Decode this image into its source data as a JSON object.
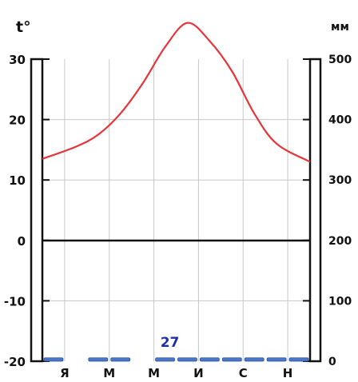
{
  "chart_data": {
    "type": "line",
    "title": "",
    "left_axis": {
      "label": "t°",
      "range": [
        -20,
        30
      ],
      "ticks": [
        30,
        20,
        10,
        0,
        -10,
        -20
      ],
      "tick_labels": [
        "30",
        "20",
        "10",
        "0",
        "-10",
        "-20"
      ]
    },
    "right_axis": {
      "label": "мм",
      "range": [
        0,
        500
      ],
      "ticks": [
        500,
        400,
        300,
        200,
        100,
        0
      ],
      "tick_labels": [
        "500",
        "400",
        "300",
        "200",
        "100",
        "0"
      ]
    },
    "months": 12,
    "month_labels": [
      {
        "index": 0,
        "label": "Я"
      },
      {
        "index": 2,
        "label": "М"
      },
      {
        "index": 4,
        "label": "М"
      },
      {
        "index": 6,
        "label": "И"
      },
      {
        "index": 8,
        "label": "С"
      },
      {
        "index": 10,
        "label": "Н"
      }
    ],
    "series": [
      {
        "kind": "temperature",
        "values": [
          13.5,
          15.5,
          17.5,
          21,
          26,
          32,
          36,
          33,
          28,
          21,
          16,
          13
        ]
      },
      {
        "kind": "precipitation",
        "values": [
          3,
          0,
          3,
          3,
          0,
          3,
          3,
          3,
          3,
          3,
          3,
          3
        ]
      }
    ],
    "annotations": [
      {
        "text": "27",
        "month": 5
      }
    ],
    "grid": true,
    "colors": {
      "temperature": "#e8333b",
      "precipitation": "#4a78c8",
      "annotation": "#1f2fa8",
      "frame": "#111111",
      "grid": "#c8c8c8"
    }
  }
}
